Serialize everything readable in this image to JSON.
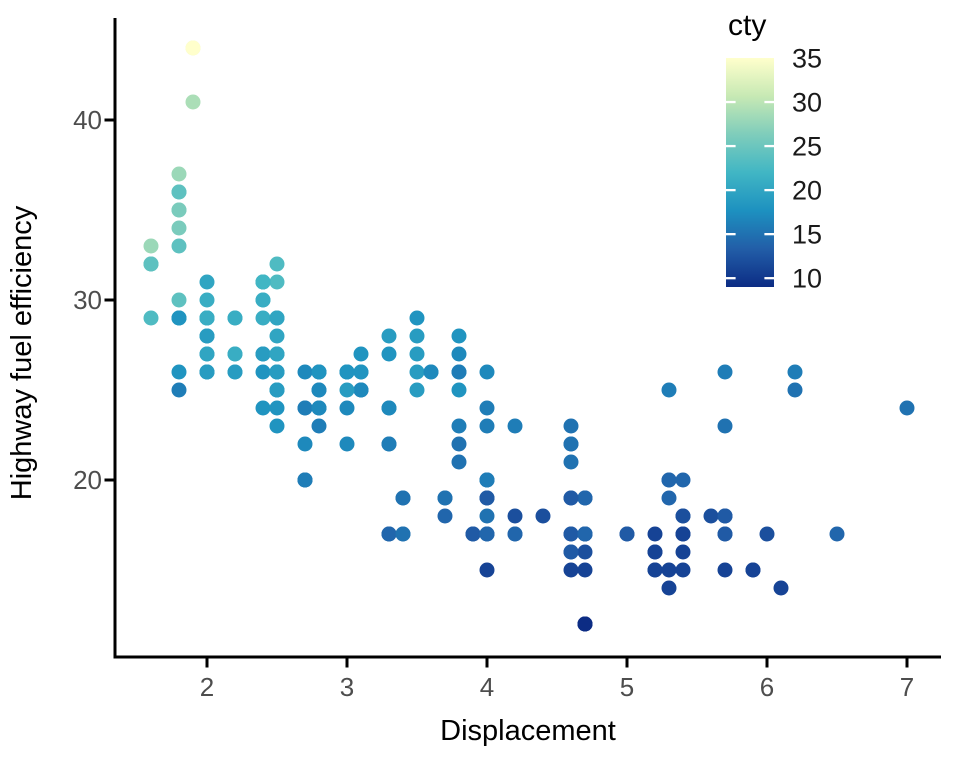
{
  "chart_data": {
    "type": "scatter",
    "title": "",
    "xlabel": "Displacement",
    "ylabel": "Highway fuel efficiency",
    "x_tick_labels": [
      "2",
      "3",
      "4",
      "5",
      "6",
      "7"
    ],
    "x_tick_values": [
      2,
      3,
      4,
      5,
      6,
      7
    ],
    "y_tick_labels": [
      "20",
      "30",
      "40"
    ],
    "y_tick_values": [
      20,
      30,
      40
    ],
    "xlim": [
      1.34,
      7.24
    ],
    "ylim": [
      10.2,
      45.7
    ],
    "grid": "off",
    "background_color": "#ffffff",
    "axis_color": "#000000",
    "tick_label_color": "#4d4d4d",
    "axis_title_color": "#000000",
    "point_columns": [
      "displ",
      "hwy",
      "cty"
    ],
    "legend": {
      "title": "cty",
      "position": "top-right",
      "limits": [
        9,
        35
      ],
      "tick_labels": [
        "35",
        "30",
        "25",
        "20",
        "15",
        "10"
      ],
      "tick_values": [
        35,
        30,
        25,
        20,
        15,
        10
      ],
      "bar_tick_values": [
        30,
        25,
        20,
        15,
        10
      ],
      "palette_name": "YlGnBu",
      "palette": [
        "#0c2c84",
        "#225ea8",
        "#1d91c0",
        "#41b6c4",
        "#7fcdbb",
        "#c7e9b4",
        "#ffffcc"
      ]
    },
    "points": [
      [
        1.8,
        29,
        18
      ],
      [
        1.8,
        29,
        21
      ],
      [
        2,
        31,
        20
      ],
      [
        2,
        30,
        21
      ],
      [
        2.8,
        26,
        16
      ],
      [
        2.8,
        26,
        18
      ],
      [
        3.1,
        27,
        18
      ],
      [
        1.8,
        26,
        18
      ],
      [
        1.8,
        25,
        16
      ],
      [
        2,
        28,
        20
      ],
      [
        2,
        27,
        19
      ],
      [
        2.8,
        25,
        15
      ],
      [
        2.8,
        25,
        17
      ],
      [
        3.1,
        25,
        17
      ],
      [
        3.1,
        25,
        15
      ],
      [
        2.8,
        24,
        15
      ],
      [
        3.1,
        25,
        17
      ],
      [
        4.2,
        23,
        16
      ],
      [
        5.3,
        20,
        14
      ],
      [
        5.3,
        15,
        11
      ],
      [
        5.3,
        20,
        14
      ],
      [
        5.7,
        17,
        13
      ],
      [
        6,
        17,
        12
      ],
      [
        5.7,
        26,
        16
      ],
      [
        5.7,
        23,
        15
      ],
      [
        6.2,
        26,
        16
      ],
      [
        6.2,
        25,
        15
      ],
      [
        7,
        24,
        15
      ],
      [
        5.3,
        19,
        14
      ],
      [
        5.3,
        14,
        11
      ],
      [
        5.7,
        15,
        11
      ],
      [
        6.5,
        17,
        14
      ],
      [
        2.4,
        27,
        19
      ],
      [
        2.4,
        30,
        22
      ],
      [
        3.1,
        26,
        18
      ],
      [
        3.5,
        29,
        18
      ],
      [
        3.6,
        26,
        17
      ],
      [
        2.4,
        24,
        18
      ],
      [
        3,
        24,
        17
      ],
      [
        3.3,
        22,
        16
      ],
      [
        3.3,
        22,
        16
      ],
      [
        3.3,
        24,
        17
      ],
      [
        3.3,
        24,
        17
      ],
      [
        3.3,
        17,
        11
      ],
      [
        3.8,
        22,
        15
      ],
      [
        3.8,
        21,
        15
      ],
      [
        3.8,
        23,
        16
      ],
      [
        4,
        23,
        16
      ],
      [
        3.7,
        19,
        15
      ],
      [
        3.7,
        18,
        14
      ],
      [
        3.9,
        17,
        13
      ],
      [
        3.9,
        17,
        14
      ],
      [
        4.7,
        19,
        14
      ],
      [
        4.7,
        19,
        14
      ],
      [
        4.7,
        12,
        9
      ],
      [
        5.2,
        17,
        11
      ],
      [
        5.2,
        15,
        11
      ],
      [
        3.9,
        17,
        13
      ],
      [
        4.7,
        17,
        13
      ],
      [
        4.7,
        12,
        9
      ],
      [
        4.7,
        17,
        13
      ],
      [
        5.2,
        16,
        11
      ],
      [
        5.7,
        18,
        13
      ],
      [
        5.9,
        15,
        11
      ],
      [
        4.7,
        17,
        13
      ],
      [
        4.7,
        17,
        13
      ],
      [
        4.7,
        12,
        9
      ],
      [
        4.7,
        17,
        13
      ],
      [
        4.7,
        16,
        12
      ],
      [
        4.7,
        12,
        9
      ],
      [
        5.2,
        15,
        11
      ],
      [
        5.2,
        16,
        11
      ],
      [
        5.7,
        17,
        13
      ],
      [
        5.9,
        15,
        11
      ],
      [
        4.6,
        17,
        11
      ],
      [
        5.4,
        17,
        11
      ],
      [
        5.4,
        18,
        12
      ],
      [
        4,
        17,
        14
      ],
      [
        4,
        19,
        15
      ],
      [
        4,
        17,
        14
      ],
      [
        4,
        19,
        13
      ],
      [
        4.6,
        19,
        13
      ],
      [
        5,
        17,
        13
      ],
      [
        4.2,
        17,
        14
      ],
      [
        4.2,
        17,
        14
      ],
      [
        4.6,
        16,
        13
      ],
      [
        4.6,
        16,
        13
      ],
      [
        4.6,
        17,
        13
      ],
      [
        5.4,
        15,
        11
      ],
      [
        5.4,
        17,
        13
      ],
      [
        3.8,
        26,
        18
      ],
      [
        3.8,
        25,
        18
      ],
      [
        4,
        26,
        17
      ],
      [
        4,
        24,
        16
      ],
      [
        4.6,
        21,
        15
      ],
      [
        4.6,
        22,
        15
      ],
      [
        4.6,
        23,
        15
      ],
      [
        4.6,
        22,
        15
      ],
      [
        5.4,
        20,
        14
      ],
      [
        1.6,
        33,
        28
      ],
      [
        1.6,
        32,
        24
      ],
      [
        1.6,
        32,
        25
      ],
      [
        1.6,
        29,
        23
      ],
      [
        1.6,
        32,
        24
      ],
      [
        1.8,
        34,
        26
      ],
      [
        1.8,
        36,
        25
      ],
      [
        1.8,
        36,
        24
      ],
      [
        2,
        29,
        21
      ],
      [
        2.4,
        26,
        18
      ],
      [
        2.4,
        27,
        18
      ],
      [
        2.4,
        30,
        21
      ],
      [
        2.4,
        31,
        21
      ],
      [
        2.5,
        26,
        18
      ],
      [
        2.5,
        26,
        18
      ],
      [
        3.3,
        28,
        19
      ],
      [
        2,
        26,
        19
      ],
      [
        2,
        29,
        19
      ],
      [
        2,
        28,
        20
      ],
      [
        2,
        27,
        20
      ],
      [
        2.7,
        24,
        17
      ],
      [
        2.7,
        24,
        16
      ],
      [
        2.7,
        26,
        17
      ],
      [
        3,
        22,
        17
      ],
      [
        3.7,
        19,
        15
      ],
      [
        4,
        20,
        15
      ],
      [
        4.7,
        17,
        14
      ],
      [
        4.7,
        12,
        9
      ],
      [
        4.7,
        19,
        14
      ],
      [
        5.7,
        18,
        13
      ],
      [
        6.1,
        14,
        11
      ],
      [
        4,
        15,
        11
      ],
      [
        4.2,
        18,
        12
      ],
      [
        4.4,
        18,
        12
      ],
      [
        4.6,
        15,
        11
      ],
      [
        5.4,
        17,
        11
      ],
      [
        5.4,
        16,
        11
      ],
      [
        5.4,
        18,
        12
      ],
      [
        4,
        17,
        14
      ],
      [
        4,
        19,
        13
      ],
      [
        4.6,
        19,
        13
      ],
      [
        5,
        17,
        13
      ],
      [
        2.4,
        29,
        21
      ],
      [
        2.4,
        27,
        19
      ],
      [
        2.5,
        31,
        23
      ],
      [
        2.5,
        32,
        23
      ],
      [
        3.5,
        27,
        19
      ],
      [
        3.5,
        26,
        19
      ],
      [
        3,
        26,
        18
      ],
      [
        3,
        25,
        19
      ],
      [
        3.5,
        25,
        19
      ],
      [
        3.3,
        17,
        15
      ],
      [
        3.3,
        17,
        14
      ],
      [
        4,
        20,
        14
      ],
      [
        5.6,
        18,
        12
      ],
      [
        3.1,
        26,
        18
      ],
      [
        3.8,
        26,
        16
      ],
      [
        3.8,
        27,
        17
      ],
      [
        3.8,
        28,
        18
      ],
      [
        5.3,
        25,
        16
      ],
      [
        2.5,
        25,
        18
      ],
      [
        2.5,
        24,
        18
      ],
      [
        2.5,
        27,
        20
      ],
      [
        2.5,
        25,
        19
      ],
      [
        2.5,
        26,
        20
      ],
      [
        2.5,
        23,
        18
      ],
      [
        2.2,
        26,
        21
      ],
      [
        2.2,
        26,
        19
      ],
      [
        2.5,
        26,
        19
      ],
      [
        2.5,
        26,
        19
      ],
      [
        2.5,
        25,
        20
      ],
      [
        2.5,
        27,
        20
      ],
      [
        2.5,
        25,
        19
      ],
      [
        2.5,
        27,
        20
      ],
      [
        2.7,
        20,
        15
      ],
      [
        2.7,
        20,
        16
      ],
      [
        3.4,
        19,
        15
      ],
      [
        3.4,
        17,
        15
      ],
      [
        4,
        20,
        16
      ],
      [
        4.7,
        17,
        14
      ],
      [
        2.2,
        29,
        21
      ],
      [
        2.2,
        27,
        21
      ],
      [
        2.4,
        31,
        21
      ],
      [
        2.4,
        31,
        21
      ],
      [
        3,
        26,
        18
      ],
      [
        3,
        26,
        18
      ],
      [
        3.5,
        28,
        19
      ],
      [
        2.2,
        27,
        21
      ],
      [
        2.2,
        29,
        21
      ],
      [
        2.4,
        31,
        21
      ],
      [
        2.4,
        31,
        22
      ],
      [
        3,
        26,
        18
      ],
      [
        3,
        26,
        18
      ],
      [
        3.3,
        27,
        18
      ],
      [
        1.8,
        30,
        24
      ],
      [
        1.8,
        33,
        24
      ],
      [
        1.8,
        35,
        26
      ],
      [
        1.8,
        37,
        28
      ],
      [
        1.8,
        35,
        26
      ],
      [
        4.7,
        15,
        11
      ],
      [
        5.7,
        18,
        13
      ],
      [
        2.7,
        20,
        15
      ],
      [
        2.7,
        20,
        16
      ],
      [
        2.7,
        22,
        17
      ],
      [
        3.4,
        17,
        15
      ],
      [
        3.4,
        19,
        15
      ],
      [
        4,
        18,
        15
      ],
      [
        4,
        20,
        16
      ],
      [
        2,
        29,
        21
      ],
      [
        2,
        26,
        19
      ],
      [
        2,
        29,
        21
      ],
      [
        2,
        29,
        22
      ],
      [
        2.8,
        24,
        17
      ],
      [
        1.9,
        44,
        33
      ],
      [
        2,
        29,
        21
      ],
      [
        2,
        26,
        19
      ],
      [
        2,
        29,
        22
      ],
      [
        2,
        29,
        21
      ],
      [
        2.5,
        29,
        21
      ],
      [
        2.5,
        29,
        21
      ],
      [
        2.8,
        23,
        16
      ],
      [
        2.8,
        24,
        17
      ],
      [
        1.9,
        44,
        35
      ],
      [
        1.9,
        41,
        29
      ],
      [
        2,
        29,
        21
      ],
      [
        2,
        26,
        19
      ],
      [
        2.5,
        28,
        20
      ],
      [
        2.5,
        29,
        20
      ],
      [
        1.8,
        29,
        21
      ],
      [
        1.8,
        29,
        18
      ],
      [
        2,
        28,
        19
      ],
      [
        2,
        29,
        21
      ],
      [
        2.8,
        26,
        16
      ],
      [
        2.8,
        26,
        18
      ],
      [
        3.6,
        26,
        17
      ]
    ]
  }
}
